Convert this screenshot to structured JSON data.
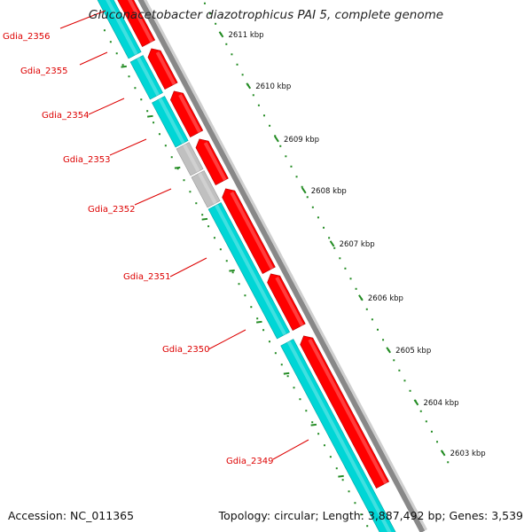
{
  "title": "Gluconacetobacter diazotrophicus PAI 5, complete genome",
  "accession_text": "Accession: NC_011365",
  "summary_text": "Topology: circular; Length: 3,887,492 bp; Genes: 3,539",
  "colors": {
    "backbone": "#888888",
    "forward_gene": "#ff0000",
    "reverse_gene": "#00d6d6",
    "other_gene": "#c0c0c0",
    "ticks": "#228b22",
    "label": "#dd0000"
  },
  "scale_labels": [
    "2611 kbp",
    "2610 kbp",
    "2609 kbp",
    "2608 kbp",
    "2607 kbp",
    "2606 kbp",
    "2605 kbp",
    "2604 kbp",
    "2603 kbp"
  ],
  "genes": [
    {
      "name": "Gdia_2356",
      "strand": "reverse"
    },
    {
      "name": "Gdia_2355",
      "strand": "reverse"
    },
    {
      "name": "Gdia_2354",
      "strand": "reverse"
    },
    {
      "name": "Gdia_2353",
      "strand": "reverse",
      "kind": "other"
    },
    {
      "name": "Gdia_2352",
      "strand": "reverse",
      "kind": "other"
    },
    {
      "name": "Gdia_2351",
      "strand": "reverse"
    },
    {
      "name": "Gdia_2350",
      "strand": "reverse"
    },
    {
      "name": "Gdia_2349",
      "strand": "reverse"
    }
  ]
}
